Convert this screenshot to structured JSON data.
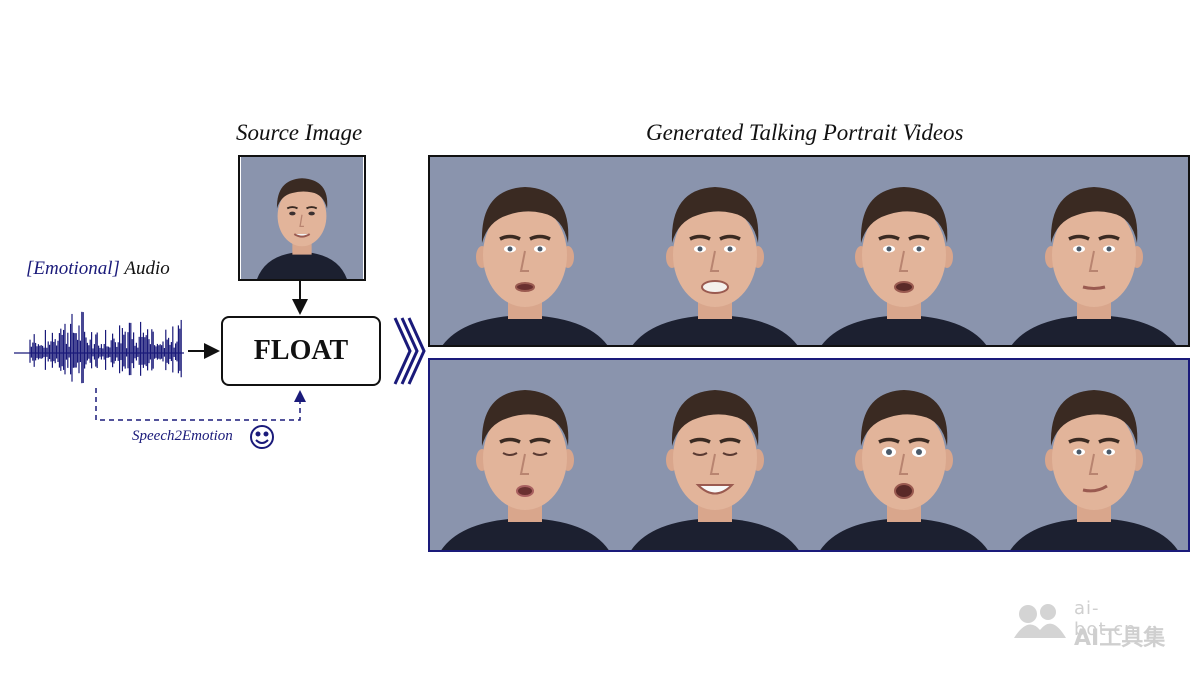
{
  "labels": {
    "source_image": "Source Image",
    "generated_videos": "Generated Talking Portrait Videos",
    "audio_emotional": "[Emotional]",
    "audio_word": "Audio",
    "model": "FLOAT",
    "speech2emotion": "Speech2Emotion"
  },
  "watermark": {
    "url": "ai-bot.cn",
    "name": "AI工具集"
  },
  "colors": {
    "navy": "#1a1a7a",
    "background_face": "#8a94ad",
    "skin": "#e2b49a",
    "hair": "#3a2a22",
    "shirt": "#1c2030"
  },
  "frames": {
    "top": [
      {
        "expression": "neutral-talking"
      },
      {
        "expression": "talking-teeth"
      },
      {
        "expression": "talking-open"
      },
      {
        "expression": "neutral"
      }
    ],
    "bottom": [
      {
        "expression": "eyes-closed-pout"
      },
      {
        "expression": "smile-eyes-closed"
      },
      {
        "expression": "surprised-talking"
      },
      {
        "expression": "smirk"
      }
    ]
  }
}
